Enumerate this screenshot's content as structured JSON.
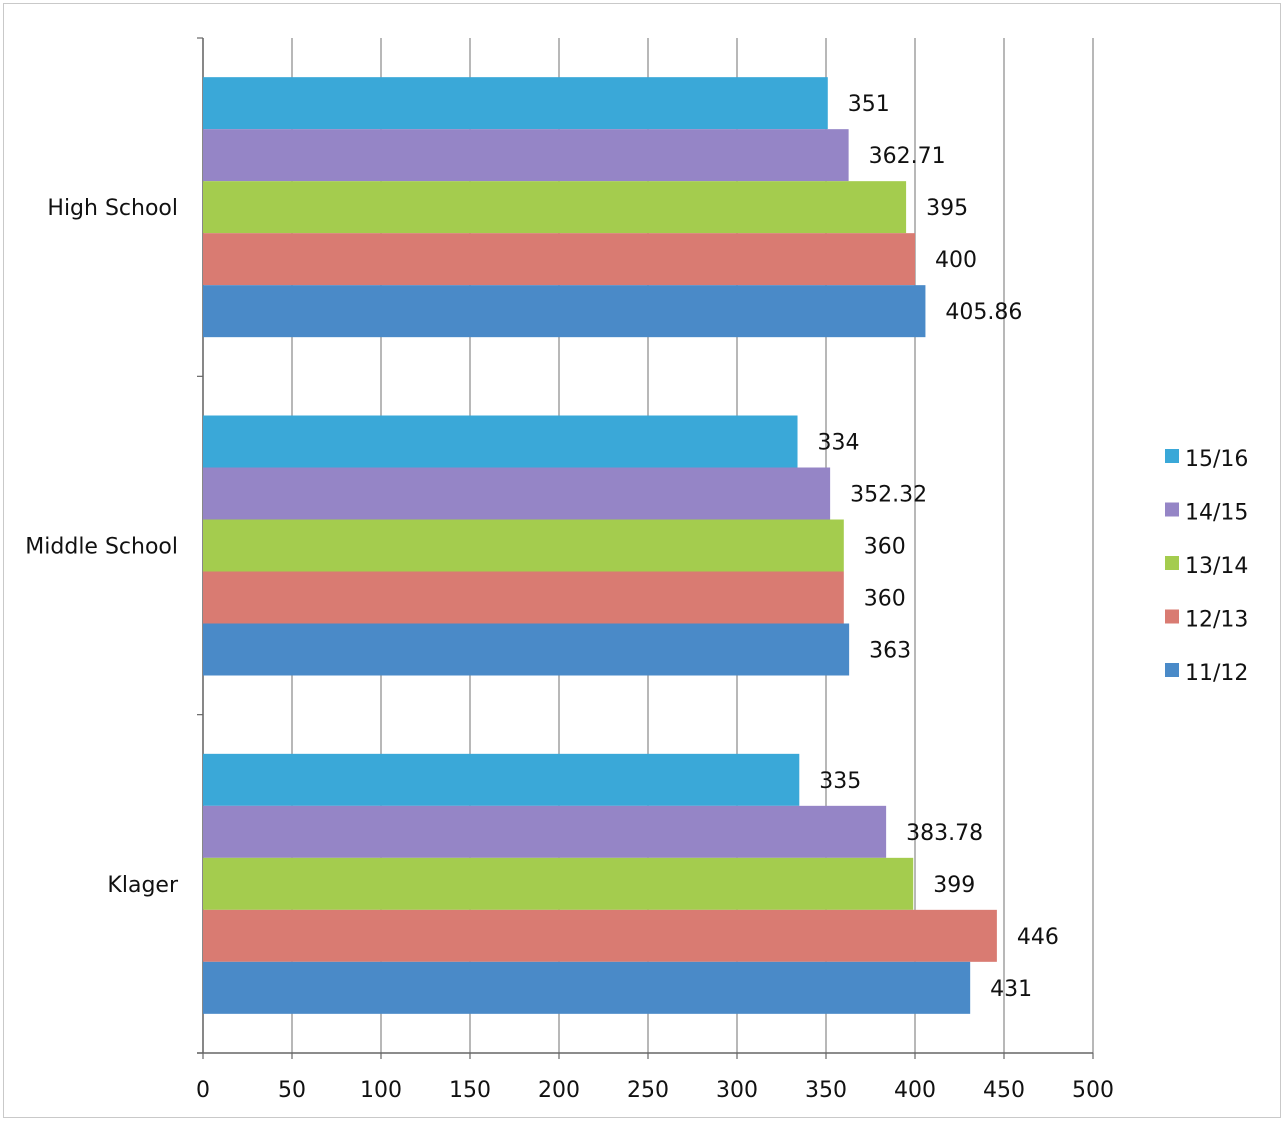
{
  "chart_data": {
    "type": "bar",
    "orientation": "horizontal",
    "title": "",
    "xlabel": "",
    "ylabel": "",
    "categories": [
      "High School",
      "Middle School",
      "Klager"
    ],
    "series": [
      {
        "name": "15/16",
        "values": [
          351,
          334,
          335
        ],
        "color": "#3aa8d8"
      },
      {
        "name": "14/15",
        "values": [
          362.71,
          352.32,
          383.78
        ],
        "color": "#9585c6"
      },
      {
        "name": "13/14",
        "values": [
          395,
          360,
          399
        ],
        "color": "#a4cc4e"
      },
      {
        "name": "12/13",
        "values": [
          400,
          360,
          446
        ],
        "color": "#d97b72"
      },
      {
        "name": "11/12",
        "values": [
          405.86,
          363,
          431
        ],
        "color": "#4a8ac8"
      }
    ],
    "data_labels": [
      [
        "351",
        "334",
        "335"
      ],
      [
        "362.71",
        "352.32",
        "383.78"
      ],
      [
        "395",
        "360",
        "399"
      ],
      [
        "400",
        "360",
        "446"
      ],
      [
        "405.86",
        "363",
        "431"
      ]
    ],
    "xlim": [
      0,
      500
    ],
    "xticks": [
      "0",
      "50",
      "100",
      "150",
      "200",
      "250",
      "300",
      "350",
      "400",
      "450",
      "500"
    ],
    "grid": true,
    "legend_position": "right"
  }
}
